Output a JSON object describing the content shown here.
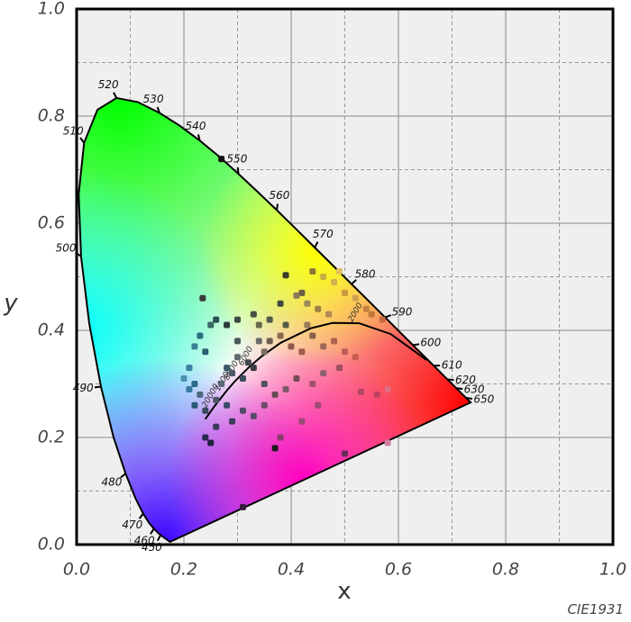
{
  "chart_data": {
    "type": "scatter",
    "x_label": "x",
    "y_label": "y",
    "footnote": "CIE1931",
    "xlim": [
      0,
      1
    ],
    "ylim": [
      0,
      1
    ],
    "xticks": [
      {
        "value": 0,
        "label": "0.0"
      },
      {
        "value": 0.2,
        "label": "0.2"
      },
      {
        "value": 0.4,
        "label": "0.4"
      },
      {
        "value": 0.6,
        "label": "0.6"
      },
      {
        "value": 0.8,
        "label": "0.8"
      },
      {
        "value": 1,
        "label": "1.0"
      }
    ],
    "yticks": [
      {
        "value": 0,
        "label": "0.0"
      },
      {
        "value": 0.2,
        "label": "0.2"
      },
      {
        "value": 0.4,
        "label": "0.4"
      },
      {
        "value": 0.6,
        "label": "0.6"
      },
      {
        "value": 0.8,
        "label": "0.8"
      },
      {
        "value": 1,
        "label": "1.0"
      }
    ],
    "xminorticks": [
      0.1,
      0.3,
      0.5,
      0.7,
      0.9
    ],
    "yminorticks": [
      0.1,
      0.3,
      0.5,
      0.7,
      0.9
    ],
    "grid": true,
    "locus": {
      "x": [
        0.1741,
        0.1566,
        0.151,
        0.144,
        0.1355,
        0.1241,
        0.1096,
        0.0913,
        0.0687,
        0.0454,
        0.0235,
        0.0082,
        0.0039,
        0.0139,
        0.0389,
        0.0743,
        0.1142,
        0.1547,
        0.1929,
        0.2296,
        0.2658,
        0.3016,
        0.3373,
        0.3731,
        0.4087,
        0.4441,
        0.4788,
        0.5125,
        0.5448,
        0.5752,
        0.6029,
        0.627,
        0.6482,
        0.6658,
        0.6801,
        0.6915,
        0.7006,
        0.7079,
        0.719,
        0.726,
        0.7347
      ],
      "y": [
        0.005,
        0.0177,
        0.0227,
        0.0297,
        0.0399,
        0.0578,
        0.0868,
        0.1327,
        0.2007,
        0.295,
        0.4127,
        0.5384,
        0.6548,
        0.7502,
        0.812,
        0.8338,
        0.8262,
        0.8059,
        0.7816,
        0.7543,
        0.7243,
        0.6923,
        0.6589,
        0.6245,
        0.5896,
        0.5547,
        0.5202,
        0.4866,
        0.4544,
        0.4242,
        0.3965,
        0.3725,
        0.3514,
        0.334,
        0.3197,
        0.3083,
        0.2993,
        0.292,
        0.2809,
        0.274,
        0.2653
      ],
      "wavelengths": [
        null,
        450,
        null,
        460,
        null,
        470,
        null,
        480,
        null,
        490,
        null,
        500,
        null,
        510,
        null,
        520,
        null,
        530,
        null,
        540,
        null,
        550,
        null,
        560,
        null,
        570,
        null,
        580,
        null,
        590,
        null,
        600,
        null,
        610,
        null,
        620,
        null,
        630,
        null,
        650,
        null
      ]
    },
    "planckian": {
      "x": [
        0.6528,
        0.5857,
        0.5267,
        0.477,
        0.4369,
        0.3805,
        0.3451,
        0.3221,
        0.2952,
        0.2807,
        0.2565,
        0.2399
      ],
      "y": [
        0.3444,
        0.3931,
        0.4133,
        0.4137,
        0.4041,
        0.3768,
        0.3516,
        0.3318,
        0.3048,
        0.2884,
        0.2577,
        0.2342
      ],
      "cct": [
        null,
        null,
        2000,
        null,
        null,
        null,
        null,
        6000,
        8000,
        10000,
        20000,
        null
      ]
    },
    "points": {
      "x": [
        0.235,
        0.27,
        0.39,
        0.44,
        0.46,
        0.48,
        0.5,
        0.52,
        0.54,
        0.55,
        0.57,
        0.49,
        0.42,
        0.41,
        0.43,
        0.45,
        0.47,
        0.38,
        0.36,
        0.34,
        0.33,
        0.3,
        0.28,
        0.26,
        0.25,
        0.23,
        0.22,
        0.24,
        0.21,
        0.2,
        0.22,
        0.21,
        0.23,
        0.22,
        0.24,
        0.26,
        0.27,
        0.29,
        0.3,
        0.32,
        0.33,
        0.35,
        0.36,
        0.38,
        0.4,
        0.42,
        0.44,
        0.46,
        0.48,
        0.5,
        0.52,
        0.49,
        0.46,
        0.44,
        0.41,
        0.39,
        0.37,
        0.35,
        0.33,
        0.31,
        0.29,
        0.28,
        0.26,
        0.24,
        0.25,
        0.38,
        0.37,
        0.5,
        0.31,
        0.56,
        0.58,
        0.53,
        0.45,
        0.42,
        0.35,
        0.31,
        0.28,
        0.43,
        0.39,
        0.34,
        0.3,
        0.58
      ],
      "y": [
        0.46,
        0.72,
        0.503,
        0.51,
        0.5,
        0.49,
        0.47,
        0.46,
        0.44,
        0.43,
        0.42,
        0.51,
        0.47,
        0.465,
        0.45,
        0.44,
        0.43,
        0.45,
        0.42,
        0.41,
        0.43,
        0.42,
        0.41,
        0.42,
        0.41,
        0.39,
        0.37,
        0.36,
        0.33,
        0.31,
        0.3,
        0.29,
        0.28,
        0.26,
        0.25,
        0.27,
        0.3,
        0.32,
        0.35,
        0.34,
        0.33,
        0.36,
        0.38,
        0.39,
        0.37,
        0.36,
        0.39,
        0.37,
        0.38,
        0.36,
        0.35,
        0.33,
        0.32,
        0.3,
        0.31,
        0.29,
        0.28,
        0.26,
        0.24,
        0.25,
        0.23,
        0.26,
        0.22,
        0.2,
        0.19,
        0.2,
        0.18,
        0.17,
        0.07,
        0.28,
        0.29,
        0.285,
        0.26,
        0.23,
        0.3,
        0.31,
        0.33,
        0.41,
        0.41,
        0.38,
        0.38,
        0.19
      ],
      "colors": [
        "#3a3a3a",
        "#111111",
        "#3b3b2a",
        "#8a7a3a",
        "#c8b040",
        "#d0b050",
        "#c89a40",
        "#d0a050",
        "#c88040",
        "#c07a3a",
        "#c86a40",
        "#e0c060",
        "#6a6040",
        "#8a7a5a",
        "#9a8a5a",
        "#a08048",
        "#b08a50",
        "#404840",
        "#505848",
        "#686850",
        "#4a5040",
        "#3a4a44",
        "#2a3a38",
        "#2a5050",
        "#3a6a6a",
        "#2a7080",
        "#3a8090",
        "#2a6070",
        "#3a80a0",
        "#4a90b0",
        "#2a6a8a",
        "#3a7aa0",
        "#4a6a80",
        "#2a5a78",
        "#3a4a60",
        "#505868",
        "#5a6a78",
        "#4a5a68",
        "#606a70",
        "#404850",
        "#3a3a44",
        "#7a7060",
        "#6a6050",
        "#8a6a50",
        "#905a50",
        "#a05a50",
        "#8a6048",
        "#a06858",
        "#b06050",
        "#c05a58",
        "#c85a50",
        "#a05060",
        "#906070",
        "#a05068",
        "#7a4a58",
        "#805a68",
        "#6a4a58",
        "#704a68",
        "#5a4a68",
        "#504a6a",
        "#403a5a",
        "#3a4a6a",
        "#3a3a60",
        "#2a2a50",
        "#202040",
        "#8a3a6a",
        "#1a1a1a",
        "#6a2a5a",
        "#3a1a40",
        "#c04060",
        "#e07080",
        "#b04a60",
        "#a04a70",
        "#9a4a78",
        "#505060",
        "#3a4a5a",
        "#3a5a6a",
        "#9a7a58",
        "#5a5a48",
        "#6a6a6a",
        "#4a5a5a",
        "#d080a0"
      ]
    }
  }
}
